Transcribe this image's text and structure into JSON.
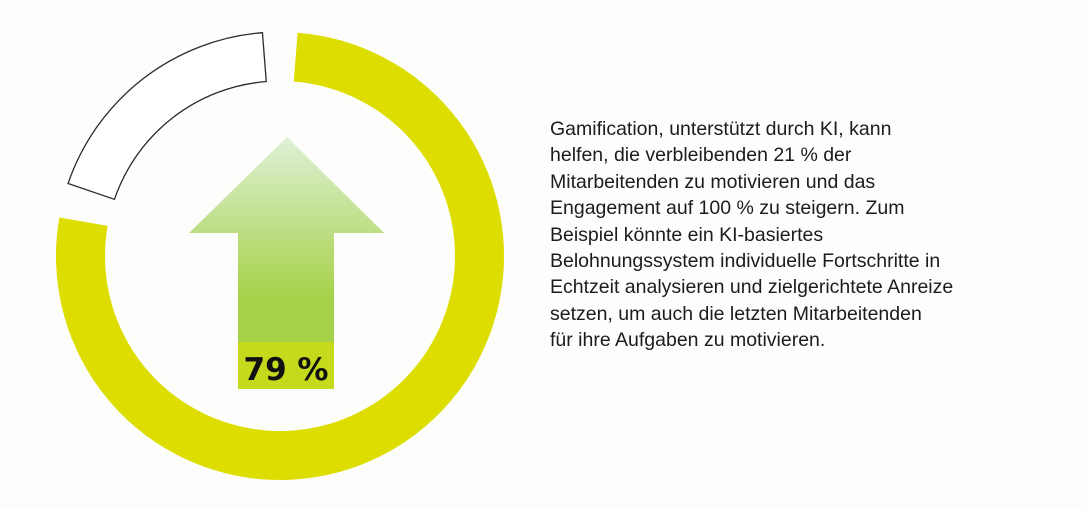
{
  "chart_data": {
    "type": "pie",
    "variant": "donut",
    "values": [
      79,
      21
    ],
    "unit": "%",
    "center_label": "79 %",
    "colors": [
      "#dedd00",
      "#ffffff"
    ],
    "remainder_outline": "#2a2a2a",
    "arrow_gradient": [
      "#dff0d6",
      "#a6d24a"
    ],
    "arrow_base_color": "#c5da1c"
  },
  "description": {
    "lines": [
      "Gamification, unterstützt durch KI, kann",
      "helfen, die verbleibenden 21 % der",
      "Mitarbeitenden zu motivieren und das",
      "Engagement auf 100 % zu steigern. Zum",
      "Beispiel könnte ein KI-basiertes",
      "Belohnungssystem individuelle Fortschritte in",
      "Echtzeit analysieren und zielgerichtete Anreize",
      "setzen, um auch die letzten Mitarbeitenden",
      "für ihre Aufgaben zu motivieren."
    ]
  }
}
